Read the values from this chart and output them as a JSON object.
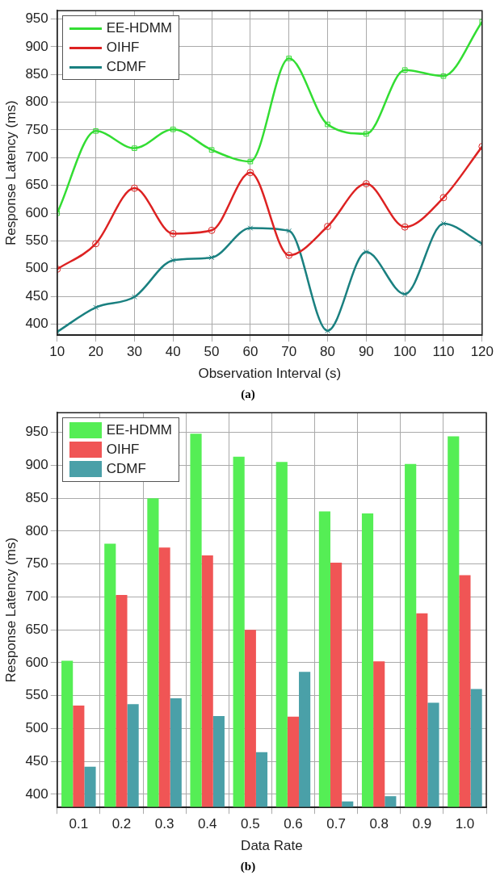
{
  "chart_data": [
    {
      "type": "line",
      "xlabel": "Observation Interval (s)",
      "ylabel": "Response Latency (ms)",
      "x": [
        10,
        20,
        30,
        40,
        50,
        60,
        70,
        80,
        90,
        100,
        110,
        120
      ],
      "xlim": [
        10,
        120
      ],
      "xticks": [
        10,
        20,
        30,
        40,
        50,
        60,
        70,
        80,
        90,
        100,
        110,
        120
      ],
      "ylim": [
        380,
        965
      ],
      "yticks": [
        400,
        450,
        500,
        550,
        600,
        650,
        700,
        750,
        800,
        850,
        900,
        950
      ],
      "grid": true,
      "legend": "top left",
      "line_style": "solid",
      "annotations": [
        "(a)"
      ],
      "series": [
        {
          "name": "EE-HDMM",
          "color": "#33dd33",
          "marker": "square",
          "values": [
            600,
            748,
            717,
            751,
            714,
            693,
            879,
            760,
            743,
            858,
            847,
            945
          ]
        },
        {
          "name": "OIHF",
          "color": "#dd2222",
          "marker": "circle",
          "values": [
            499,
            545,
            645,
            563,
            569,
            673,
            524,
            576,
            653,
            575,
            628,
            720
          ]
        },
        {
          "name": "CDMF",
          "color": "#1a8080",
          "marker": "cross",
          "values": [
            386,
            430,
            449,
            515,
            520,
            573,
            568,
            388,
            530,
            454,
            581,
            545
          ]
        }
      ]
    },
    {
      "type": "bar",
      "xlabel": "Data Rate",
      "ylabel": "Response Latency (ms)",
      "categories": [
        "0.1",
        "0.2",
        "0.3",
        "0.4",
        "0.5",
        "0.6",
        "0.7",
        "0.8",
        "0.9",
        "1.0"
      ],
      "ylim": [
        380,
        980
      ],
      "yticks": [
        400,
        450,
        500,
        550,
        600,
        650,
        700,
        750,
        800,
        850,
        900,
        950
      ],
      "grid": true,
      "legend": "top left",
      "annotations": [
        "(b)"
      ],
      "series": [
        {
          "name": "EE-HDMM",
          "color": "#55ee55",
          "values": [
            603,
            781,
            850,
            948,
            913,
            905,
            830,
            827,
            902,
            944
          ]
        },
        {
          "name": "OIHF",
          "color": "#f05555",
          "values": [
            535,
            703,
            775,
            763,
            650,
            518,
            752,
            602,
            675,
            733
          ]
        },
        {
          "name": "CDMF",
          "color": "#4aa0a8",
          "values": [
            442,
            537,
            546,
            519,
            464,
            586,
            389,
            397,
            539,
            560
          ]
        }
      ]
    }
  ]
}
